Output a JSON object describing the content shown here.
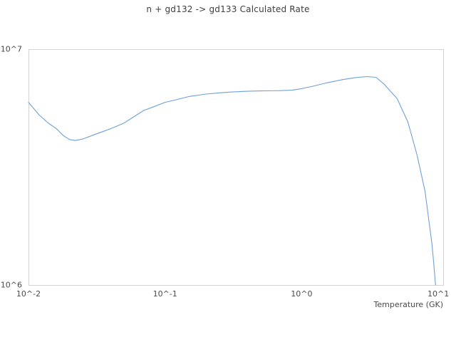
{
  "chart_data": {
    "type": "line",
    "title": "n + gd132 -> gd133 Calculated Rate",
    "xlabel": "Temperature (GK)",
    "ylabel": "",
    "x_scale": "log",
    "y_scale": "log",
    "grid": false,
    "legend": "none",
    "line_color": "#6ea0d7",
    "xlim_log10": [
      -2,
      1.036
    ],
    "ylim_log10": [
      6,
      7
    ],
    "x_ticks": [
      {
        "label": "10^-2",
        "value": 0.01
      },
      {
        "label": "10^-1",
        "value": 0.1
      },
      {
        "label": "10^0",
        "value": 1
      },
      {
        "label": "10^1",
        "value": 10
      }
    ],
    "y_ticks": [
      {
        "label": "10^7",
        "value": 10000000.0
      },
      {
        "label": "10^6",
        "value": 1000000.0
      }
    ],
    "series": [
      {
        "name": "n + gd132 -> gd133 calculated rate",
        "x": [
          0.01,
          0.012,
          0.014,
          0.016,
          0.018,
          0.02,
          0.022,
          0.025,
          0.03,
          0.035,
          0.04,
          0.05,
          0.06,
          0.07,
          0.08,
          0.1,
          0.12,
          0.15,
          0.2,
          0.25,
          0.3,
          0.4,
          0.5,
          0.7,
          0.85,
          1.0,
          1.2,
          1.5,
          2.0,
          2.5,
          3.0,
          3.5,
          4.0,
          4.5,
          5.0,
          6.0,
          7.0,
          8.0,
          9.0,
          9.3,
          9.55
        ],
        "y": [
          5950000.0,
          5250000.0,
          4850000.0,
          4600000.0,
          4300000.0,
          4140000.0,
          4100000.0,
          4160000.0,
          4330000.0,
          4470000.0,
          4600000.0,
          4860000.0,
          5200000.0,
          5500000.0,
          5660000.0,
          5950000.0,
          6100000.0,
          6300000.0,
          6450000.0,
          6530000.0,
          6580000.0,
          6630000.0,
          6650000.0,
          6670000.0,
          6700000.0,
          6800000.0,
          6960000.0,
          7180000.0,
          7430000.0,
          7580000.0,
          7650000.0,
          7600000.0,
          7120000.0,
          6600000.0,
          6170000.0,
          4900000.0,
          3550000.0,
          2500000.0,
          1490000.0,
          1200000.0,
          1000000.0
        ]
      }
    ]
  }
}
